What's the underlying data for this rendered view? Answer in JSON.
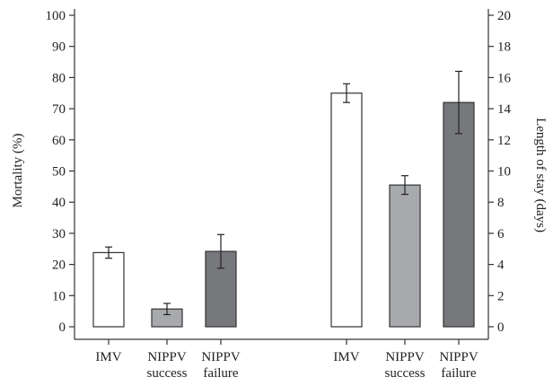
{
  "chart_data": {
    "type": "bar",
    "title": "",
    "left_axis": {
      "label": "Mortality (%)",
      "ylim": [
        0,
        100
      ],
      "ticks": [
        0,
        10,
        20,
        30,
        40,
        50,
        60,
        70,
        80,
        90,
        100
      ]
    },
    "right_axis": {
      "label": "Length of stay (days)",
      "ylim": [
        0,
        20
      ],
      "ticks": [
        0,
        2,
        4,
        6,
        8,
        10,
        12,
        14,
        16,
        18,
        20
      ]
    },
    "groups": [
      {
        "axis": "left",
        "bars": [
          {
            "category": [
              "IMV"
            ],
            "value": 23.8,
            "error": 1.8,
            "fill": "#ffffff"
          },
          {
            "category": [
              "NIPPV",
              "success"
            ],
            "value": 5.7,
            "error": 1.8,
            "fill": "#a8a9ad"
          },
          {
            "category": [
              "NIPPV",
              "failure"
            ],
            "value": 24.2,
            "error": 5.4,
            "fill": "#77787c"
          }
        ]
      },
      {
        "axis": "right",
        "bars": [
          {
            "category": [
              "IMV"
            ],
            "value": 15.0,
            "error": 0.6,
            "fill": "#ffffff"
          },
          {
            "category": [
              "NIPPV",
              "success"
            ],
            "value": 9.1,
            "error": 0.6,
            "fill": "#a8a9ad"
          },
          {
            "category": [
              "NIPPV",
              "failure"
            ],
            "value": 14.4,
            "error": 2.0,
            "fill": "#77787c"
          }
        ]
      }
    ],
    "grid": false,
    "legend": "none"
  }
}
